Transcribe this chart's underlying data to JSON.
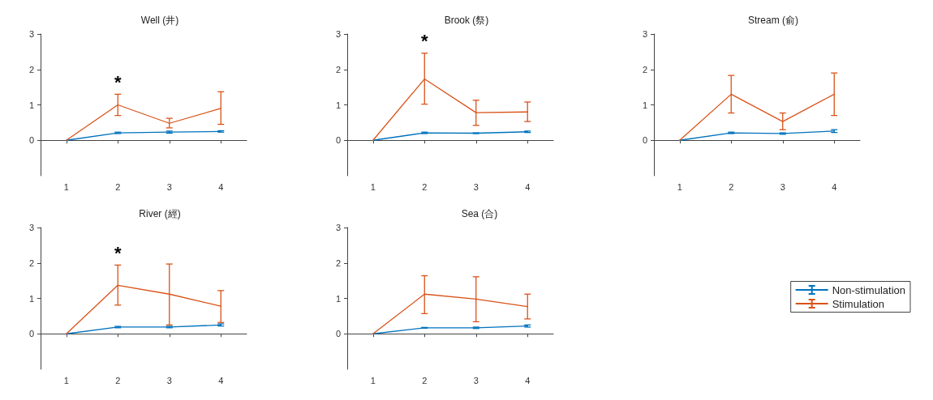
{
  "chart_data": [
    {
      "type": "line",
      "title": "Well (井)",
      "x": [
        1,
        2,
        3,
        4
      ],
      "xlim": [
        0.5,
        4.5
      ],
      "xticks": [
        1,
        2,
        3,
        4
      ],
      "ylim": [
        -1,
        3
      ],
      "yticks": [
        0,
        1,
        2,
        3
      ],
      "annotations": [
        "*"
      ],
      "series": [
        {
          "color": "#0072bd",
          "values": [
            0,
            0.21,
            0.23,
            0.25
          ],
          "errors": [
            null,
            0.02,
            0.03,
            0.02
          ]
        },
        {
          "color": "#d95319",
          "values": [
            0,
            1.0,
            0.48,
            0.9
          ],
          "errors": [
            null,
            [
              0.7,
              1.3
            ],
            [
              0.35,
              0.62
            ],
            [
              0.45,
              1.37
            ]
          ]
        }
      ]
    },
    {
      "type": "line",
      "title": "Brook (祭)",
      "x": [
        1,
        2,
        3,
        4
      ],
      "xlim": [
        0.5,
        4.5
      ],
      "xticks": [
        1,
        2,
        3,
        4
      ],
      "ylim": [
        -1,
        3
      ],
      "yticks": [
        0,
        1,
        2,
        3
      ],
      "annotations": [
        "*"
      ],
      "series": [
        {
          "color": "#0072bd",
          "values": [
            0,
            0.21,
            0.2,
            0.24
          ],
          "errors": [
            null,
            0.02,
            0.01,
            0.02
          ]
        },
        {
          "color": "#d95319",
          "values": [
            0,
            1.73,
            0.78,
            0.8
          ],
          "errors": [
            null,
            [
              1.02,
              2.46
            ],
            [
              0.42,
              1.13
            ],
            [
              0.53,
              1.08
            ]
          ]
        }
      ]
    },
    {
      "type": "line",
      "title": "Stream (俞)",
      "x": [
        1,
        2,
        3,
        4
      ],
      "xlim": [
        0.5,
        4.5
      ],
      "xticks": [
        1,
        2,
        3,
        4
      ],
      "ylim": [
        -1,
        3
      ],
      "yticks": [
        0,
        1,
        2,
        3
      ],
      "series": [
        {
          "color": "#0072bd",
          "values": [
            0,
            0.21,
            0.19,
            0.26
          ],
          "errors": [
            null,
            0.02,
            0.02,
            0.04
          ]
        },
        {
          "color": "#d95319",
          "values": [
            0,
            1.3,
            0.53,
            1.3
          ],
          "errors": [
            null,
            [
              0.77,
              1.83
            ],
            [
              0.3,
              0.77
            ],
            [
              0.7,
              1.9
            ]
          ]
        }
      ]
    },
    {
      "type": "line",
      "title": "River (經)",
      "x": [
        1,
        2,
        3,
        4
      ],
      "xlim": [
        0.5,
        4.5
      ],
      "xticks": [
        1,
        2,
        3,
        4
      ],
      "ylim": [
        -1,
        3
      ],
      "yticks": [
        0,
        1,
        2,
        3
      ],
      "annotations": [
        "*"
      ],
      "series": [
        {
          "color": "#0072bd",
          "values": [
            0,
            0.19,
            0.19,
            0.25
          ],
          "errors": [
            null,
            0.02,
            0.02,
            0.03
          ]
        },
        {
          "color": "#d95319",
          "values": [
            0,
            1.37,
            1.12,
            0.78
          ],
          "errors": [
            null,
            [
              0.81,
              1.94
            ],
            [
              0.25,
              1.97
            ],
            [
              0.32,
              1.22
            ]
          ]
        }
      ]
    },
    {
      "type": "line",
      "title": "Sea (合)",
      "x": [
        1,
        2,
        3,
        4
      ],
      "xlim": [
        0.5,
        4.5
      ],
      "xticks": [
        1,
        2,
        3,
        4
      ],
      "ylim": [
        -1,
        3
      ],
      "yticks": [
        0,
        1,
        2,
        3
      ],
      "legend": "right",
      "series": [
        {
          "name": "Non-stimulation",
          "color": "#0072bd",
          "values": [
            0,
            0.17,
            0.17,
            0.22
          ],
          "errors": [
            null,
            0.01,
            0.02,
            0.03
          ]
        },
        {
          "name": "Stimulation",
          "color": "#d95319",
          "values": [
            0,
            1.12,
            0.98,
            0.77
          ],
          "errors": [
            null,
            [
              0.57,
              1.64
            ],
            [
              0.34,
              1.61
            ],
            [
              0.42,
              1.12
            ]
          ]
        }
      ]
    }
  ]
}
